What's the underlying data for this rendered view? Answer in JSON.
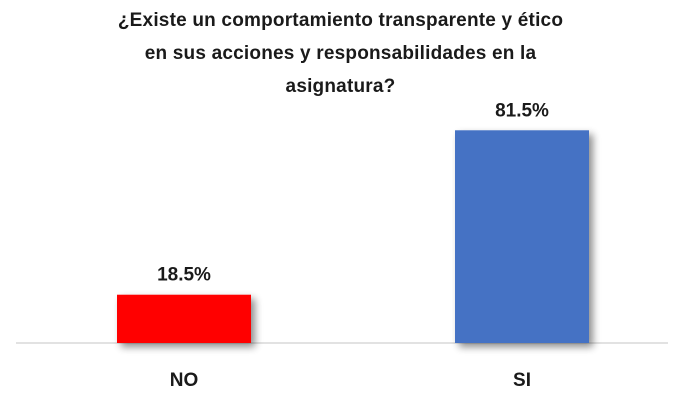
{
  "chart_data": {
    "type": "bar",
    "title_lines": [
      "¿Existe un comportamiento transparente y ético",
      "en sus acciones y responsabilidades  en la",
      "asignatura?"
    ],
    "categories": [
      "NO",
      "SI"
    ],
    "values": [
      18.5,
      81.5
    ],
    "value_labels": [
      "18.5%",
      "81.5%"
    ],
    "colors": [
      "#ff0000",
      "#4472c4"
    ],
    "ylim": [
      0,
      100
    ],
    "grid": false,
    "legend": "none"
  }
}
